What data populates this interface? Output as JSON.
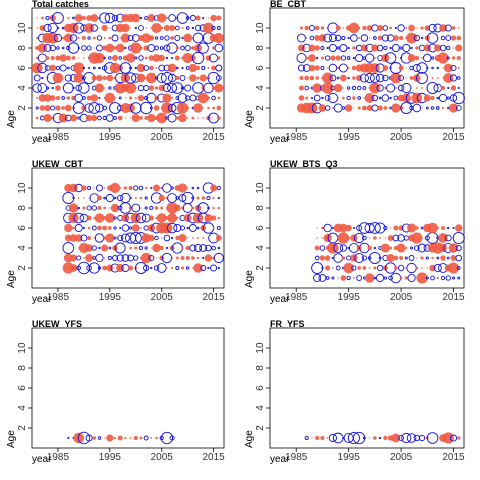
{
  "chart_data": [
    {
      "type": "scatter",
      "title": "Total catches",
      "xlabel": "year",
      "ylabel": "Age",
      "xlim": [
        1980,
        2017
      ],
      "ylim": [
        0,
        12
      ],
      "xticks": [
        1985,
        1995,
        2005,
        2015
      ],
      "yticks": [
        2,
        4,
        6,
        8,
        10
      ],
      "ages": [
        1,
        11
      ],
      "years": [
        1981,
        2016
      ],
      "pattern_seed": 11
    },
    {
      "type": "scatter",
      "title": "BE_CBT",
      "xlabel": "year",
      "ylabel": "Age",
      "xlim": [
        1980,
        2017
      ],
      "ylim": [
        0,
        12
      ],
      "xticks": [
        1985,
        1995,
        2005,
        2015
      ],
      "yticks": [
        2,
        4,
        6,
        8,
        10
      ],
      "ages": [
        2,
        10
      ],
      "years": [
        1986,
        2016
      ],
      "pattern_seed": 23
    },
    {
      "type": "scatter",
      "title": "UKEW_CBT",
      "xlabel": "year",
      "ylabel": "Age",
      "xlim": [
        1980,
        2017
      ],
      "ylim": [
        0,
        12
      ],
      "xticks": [
        1985,
        1995,
        2005,
        2015
      ],
      "yticks": [
        2,
        4,
        6,
        8,
        10
      ],
      "ages": [
        2,
        10
      ],
      "years": [
        1987,
        2016
      ],
      "pattern_seed": 37
    },
    {
      "type": "scatter",
      "title": "UKEW_BTS_Q3",
      "xlabel": "year",
      "ylabel": "Age",
      "xlim": [
        1980,
        2017
      ],
      "ylim": [
        0,
        12
      ],
      "xticks": [
        1985,
        1995,
        2005,
        2015
      ],
      "yticks": [
        2,
        4,
        6,
        8,
        10
      ],
      "ages": [
        1,
        6
      ],
      "years": [
        1989,
        2016
      ],
      "pattern_seed": 53
    },
    {
      "type": "scatter",
      "title": "UKEW_YFS",
      "xlabel": "year",
      "ylabel": "Age",
      "xlim": [
        1980,
        2017
      ],
      "ylim": [
        0,
        12
      ],
      "xticks": [
        1985,
        1995,
        2005,
        2015
      ],
      "yticks": [
        2,
        4,
        6,
        8,
        10
      ],
      "ages": [
        1,
        1
      ],
      "years": [
        1987,
        2007
      ],
      "pattern_seed": 71
    },
    {
      "type": "scatter",
      "title": "FR_YFS",
      "xlabel": "year",
      "ylabel": "Age",
      "xlim": [
        1980,
        2017
      ],
      "ylim": [
        0,
        12
      ],
      "xticks": [
        1985,
        1995,
        2005,
        2015
      ],
      "yticks": [
        2,
        4,
        6,
        8,
        10
      ],
      "ages": [
        1,
        1
      ],
      "years": [
        1987,
        2016
      ],
      "pattern_seed": 89
    }
  ],
  "colors": {
    "positive": "#f15a40",
    "negative": "#1010e0",
    "axis": "#000000"
  }
}
